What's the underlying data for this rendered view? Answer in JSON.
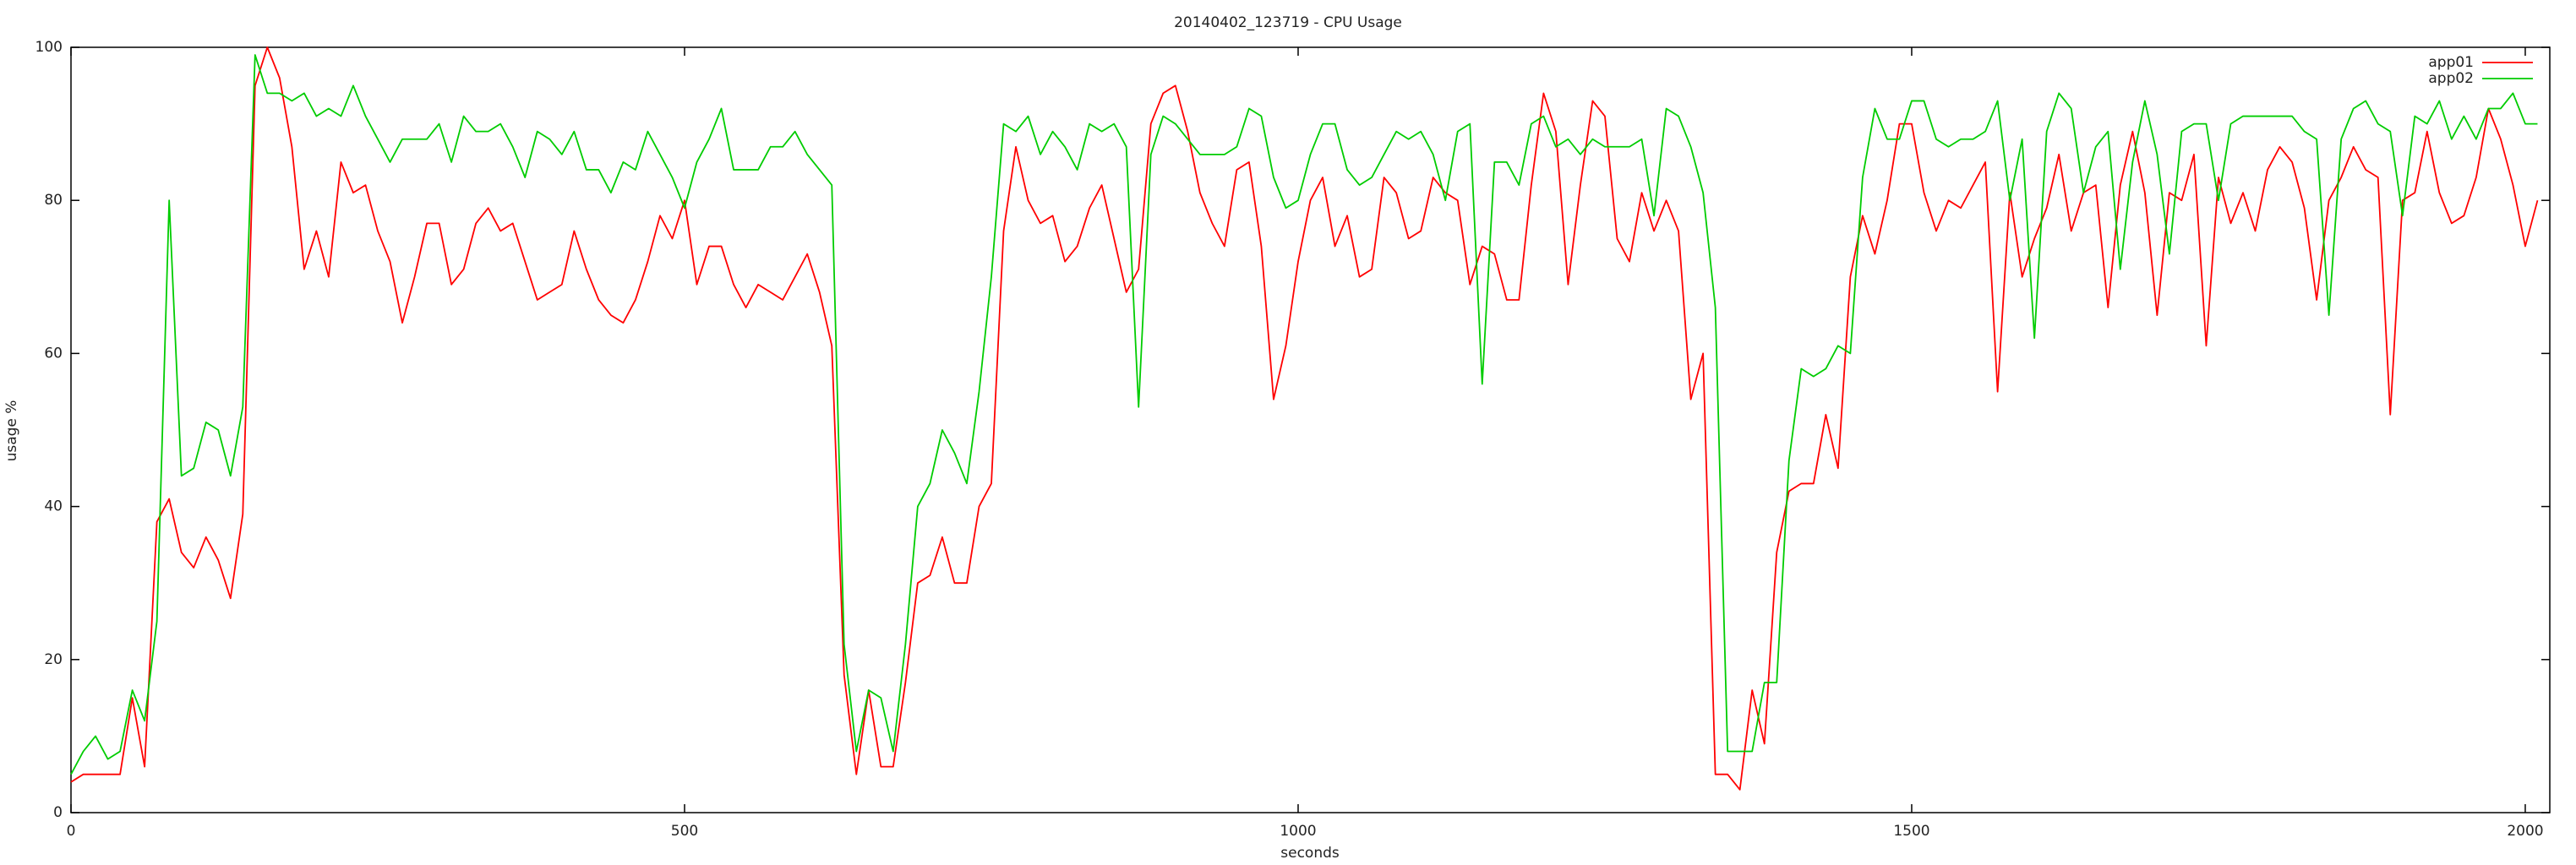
{
  "chart_data": {
    "type": "line",
    "title": "20140402_123719 - CPU Usage",
    "x_label": "seconds",
    "y_label": "usage %",
    "x": [
      0,
      10,
      20,
      30,
      40,
      50,
      60,
      70,
      80,
      90,
      100,
      110,
      120,
      130,
      140,
      150,
      160,
      170,
      180,
      190,
      200,
      210,
      220,
      230,
      240,
      250,
      260,
      270,
      280,
      290,
      300,
      310,
      320,
      330,
      340,
      350,
      360,
      370,
      380,
      390,
      400,
      410,
      420,
      430,
      440,
      450,
      460,
      470,
      480,
      490,
      500,
      510,
      520,
      530,
      540,
      550,
      560,
      570,
      580,
      590,
      600,
      610,
      620,
      630,
      640,
      650,
      660,
      670,
      680,
      690,
      700,
      710,
      720,
      730,
      740,
      750,
      760,
      770,
      780,
      790,
      800,
      810,
      820,
      830,
      840,
      850,
      860,
      870,
      880,
      890,
      900,
      910,
      920,
      930,
      940,
      950,
      960,
      970,
      980,
      990,
      1000,
      1010,
      1020,
      1030,
      1040,
      1050,
      1060,
      1070,
      1080,
      1090,
      1100,
      1110,
      1120,
      1130,
      1140,
      1150,
      1160,
      1170,
      1180,
      1190,
      1200,
      1210,
      1220,
      1230,
      1240,
      1250,
      1260,
      1270,
      1280,
      1290,
      1300,
      1310,
      1320,
      1330,
      1340,
      1350,
      1360,
      1370,
      1380,
      1390,
      1400,
      1410,
      1420,
      1430,
      1440,
      1450,
      1460,
      1470,
      1480,
      1490,
      1500,
      1510,
      1520,
      1530,
      1540,
      1550,
      1560,
      1570,
      1580,
      1590,
      1600,
      1610,
      1620,
      1630,
      1640,
      1650,
      1660,
      1670,
      1680,
      1690,
      1700,
      1710,
      1720,
      1730,
      1740,
      1750,
      1760,
      1770,
      1780,
      1790,
      1800,
      1810,
      1820,
      1830,
      1840,
      1850,
      1860,
      1870,
      1880,
      1890,
      1900,
      1910,
      1920,
      1930,
      1940,
      1950,
      1960,
      1970,
      1980,
      1990,
      2000,
      2010
    ],
    "series": [
      {
        "name": "app01",
        "color": "#ff0000",
        "values": [
          4,
          5,
          5,
          5,
          5,
          15,
          6,
          38,
          41,
          34,
          32,
          36,
          33,
          28,
          39,
          95,
          100,
          96,
          87,
          71,
          76,
          70,
          85,
          81,
          82,
          76,
          72,
          64,
          70,
          77,
          77,
          69,
          71,
          77,
          79,
          76,
          77,
          72,
          67,
          68,
          69,
          76,
          71,
          67,
          65,
          64,
          67,
          72,
          78,
          75,
          80,
          69,
          74,
          74,
          69,
          66,
          69,
          68,
          67,
          70,
          73,
          68,
          61,
          18,
          5,
          16,
          6,
          6,
          17,
          30,
          31,
          36,
          30,
          30,
          40,
          43,
          76,
          87,
          80,
          77,
          78,
          72,
          74,
          79,
          82,
          75,
          68,
          71,
          90,
          94,
          95,
          89,
          81,
          77,
          74,
          84,
          85,
          74,
          54,
          61,
          72,
          80,
          83,
          74,
          78,
          70,
          71,
          83,
          81,
          75,
          76,
          83,
          81,
          80,
          69,
          74,
          73,
          67,
          67,
          82,
          94,
          89,
          69,
          82,
          93,
          91,
          75,
          72,
          81,
          76,
          80,
          76,
          54,
          60,
          5,
          5,
          3,
          16,
          9,
          34,
          42,
          43,
          43,
          52,
          45,
          70,
          78,
          73,
          80,
          90,
          90,
          81,
          76,
          80,
          79,
          82,
          85,
          55,
          81,
          70,
          75,
          79,
          86,
          76,
          81,
          82,
          66,
          82,
          89,
          81,
          65,
          81,
          80,
          86,
          61,
          83,
          77,
          81,
          76,
          84,
          87,
          85,
          79,
          67,
          80,
          83,
          87,
          84,
          83,
          52,
          80,
          81,
          89,
          81,
          77,
          78,
          83,
          92,
          88,
          82,
          74,
          80
        ]
      },
      {
        "name": "app02",
        "color": "#00cc00",
        "values": [
          5,
          8,
          10,
          7,
          8,
          16,
          12,
          25,
          80,
          44,
          45,
          51,
          50,
          44,
          53,
          99,
          94,
          94,
          93,
          94,
          91,
          92,
          91,
          95,
          91,
          88,
          85,
          88,
          88,
          88,
          90,
          85,
          91,
          89,
          89,
          90,
          87,
          83,
          89,
          88,
          86,
          89,
          84,
          84,
          81,
          85,
          84,
          89,
          86,
          83,
          79,
          85,
          88,
          92,
          84,
          84,
          84,
          87,
          87,
          89,
          86,
          84,
          82,
          22,
          8,
          16,
          15,
          8,
          22,
          40,
          43,
          50,
          47,
          43,
          55,
          70,
          90,
          89,
          91,
          86,
          89,
          87,
          84,
          90,
          89,
          90,
          87,
          53,
          86,
          91,
          90,
          88,
          86,
          86,
          86,
          87,
          92,
          91,
          83,
          79,
          80,
          86,
          90,
          90,
          84,
          82,
          83,
          86,
          89,
          88,
          89,
          86,
          80,
          89,
          90,
          56,
          85,
          85,
          82,
          90,
          91,
          87,
          88,
          86,
          88,
          87,
          87,
          87,
          88,
          78,
          92,
          91,
          87,
          81,
          66,
          8,
          8,
          8,
          17,
          17,
          46,
          58,
          57,
          58,
          61,
          60,
          83,
          92,
          88,
          88,
          93,
          93,
          88,
          87,
          88,
          88,
          89,
          93,
          80,
          88,
          62,
          89,
          94,
          92,
          81,
          87,
          89,
          71,
          85,
          93,
          86,
          73,
          89,
          90,
          90,
          80,
          90,
          91,
          91,
          91,
          91,
          91,
          89,
          88,
          65,
          88,
          92,
          93,
          90,
          89,
          78,
          91,
          90,
          93,
          88,
          91,
          88,
          92,
          92,
          94,
          90,
          90
        ]
      }
    ],
    "xlim": [
      0,
      2020
    ],
    "xticks": [
      0,
      500,
      1000,
      1500,
      2000
    ],
    "ylim": [
      0,
      100
    ],
    "yticks": [
      0,
      20,
      40,
      60,
      80,
      100
    ],
    "grid": false,
    "legend": "top-right"
  }
}
